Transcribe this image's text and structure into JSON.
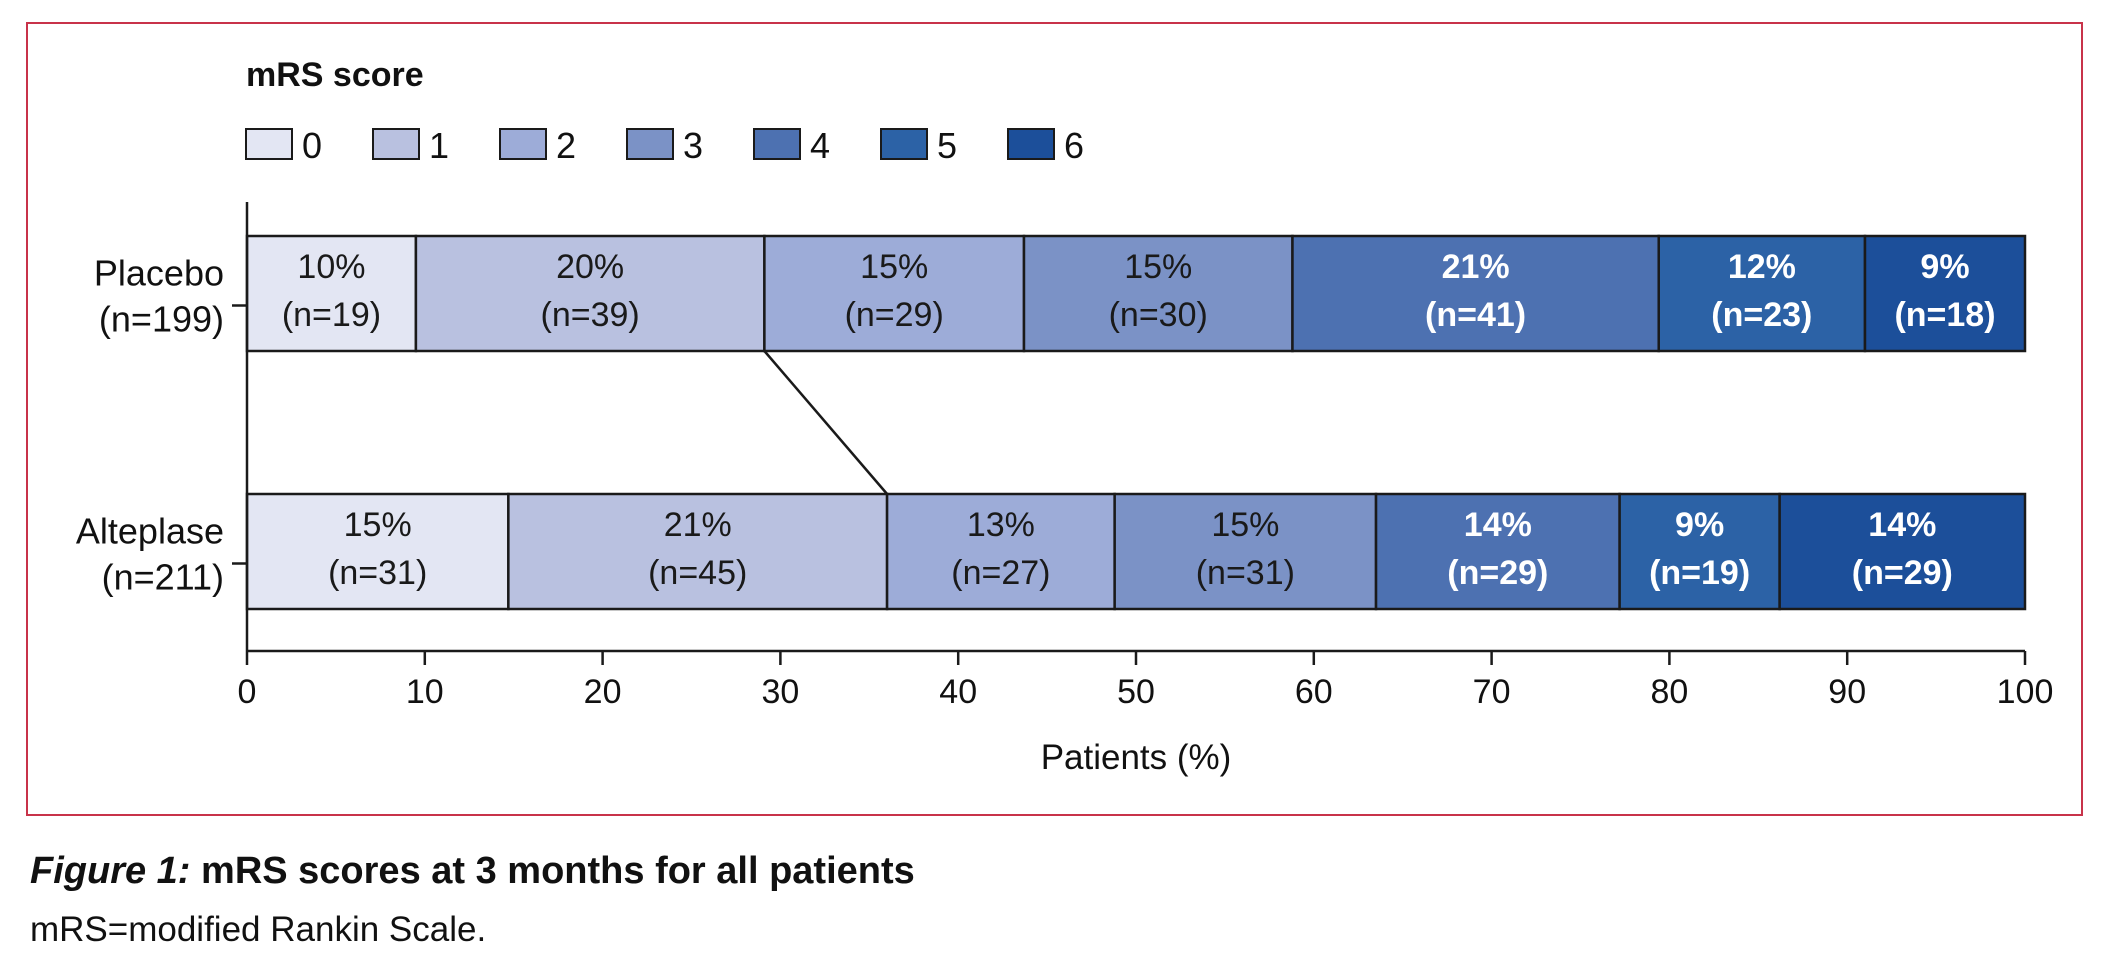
{
  "chart_data": {
    "type": "stacked-bar-horizontal",
    "legend_title": "mRS score",
    "legend_position": "top-left",
    "categories": [
      "0",
      "1",
      "2",
      "3",
      "4",
      "5",
      "6"
    ],
    "colors": [
      "#e3e6f3",
      "#b9c1e0",
      "#9dacd8",
      "#7b92c6",
      "#4d71b1",
      "#2c62a6",
      "#1c4f9a"
    ],
    "xlabel": "Patients (%)",
    "xlim": [
      0,
      100
    ],
    "xticks": [
      "0",
      "10",
      "20",
      "30",
      "40",
      "50",
      "60",
      "70",
      "80",
      "90",
      "100"
    ],
    "grid": false,
    "series": [
      {
        "name": "Placebo",
        "n_label": "(n=199)",
        "segments": [
          {
            "score": "0",
            "value": 9.5,
            "pct": "10%",
            "n": "(n=19)"
          },
          {
            "score": "1",
            "value": 19.6,
            "pct": "20%",
            "n": "(n=39)"
          },
          {
            "score": "2",
            "value": 14.6,
            "pct": "15%",
            "n": "(n=29)"
          },
          {
            "score": "3",
            "value": 15.1,
            "pct": "15%",
            "n": "(n=30)"
          },
          {
            "score": "4",
            "value": 20.6,
            "pct": "21%",
            "n": "(n=41)"
          },
          {
            "score": "5",
            "value": 11.6,
            "pct": "12%",
            "n": "(n=23)"
          },
          {
            "score": "6",
            "value": 9.0,
            "pct": "9%",
            "n": "(n=18)"
          }
        ]
      },
      {
        "name": "Alteplase",
        "n_label": "(n=211)",
        "segments": [
          {
            "score": "0",
            "value": 14.7,
            "pct": "15%",
            "n": "(n=31)"
          },
          {
            "score": "1",
            "value": 21.3,
            "pct": "21%",
            "n": "(n=45)"
          },
          {
            "score": "2",
            "value": 12.8,
            "pct": "13%",
            "n": "(n=27)"
          },
          {
            "score": "3",
            "value": 14.7,
            "pct": "15%",
            "n": "(n=31)"
          },
          {
            "score": "4",
            "value": 13.7,
            "pct": "14%",
            "n": "(n=29)"
          },
          {
            "score": "5",
            "value": 9.0,
            "pct": "9%",
            "n": "(n=19)"
          },
          {
            "score": "6",
            "value": 13.8,
            "pct": "14%",
            "n": "(n=29)"
          }
        ]
      }
    ],
    "connector": {
      "from_series": "Placebo",
      "to_series": "Alteplase",
      "after_score": "1"
    }
  },
  "caption": {
    "label": "Figure 1:",
    "title": "mRS scores at 3 months for all patients",
    "note": "mRS=modified Rankin Scale."
  }
}
